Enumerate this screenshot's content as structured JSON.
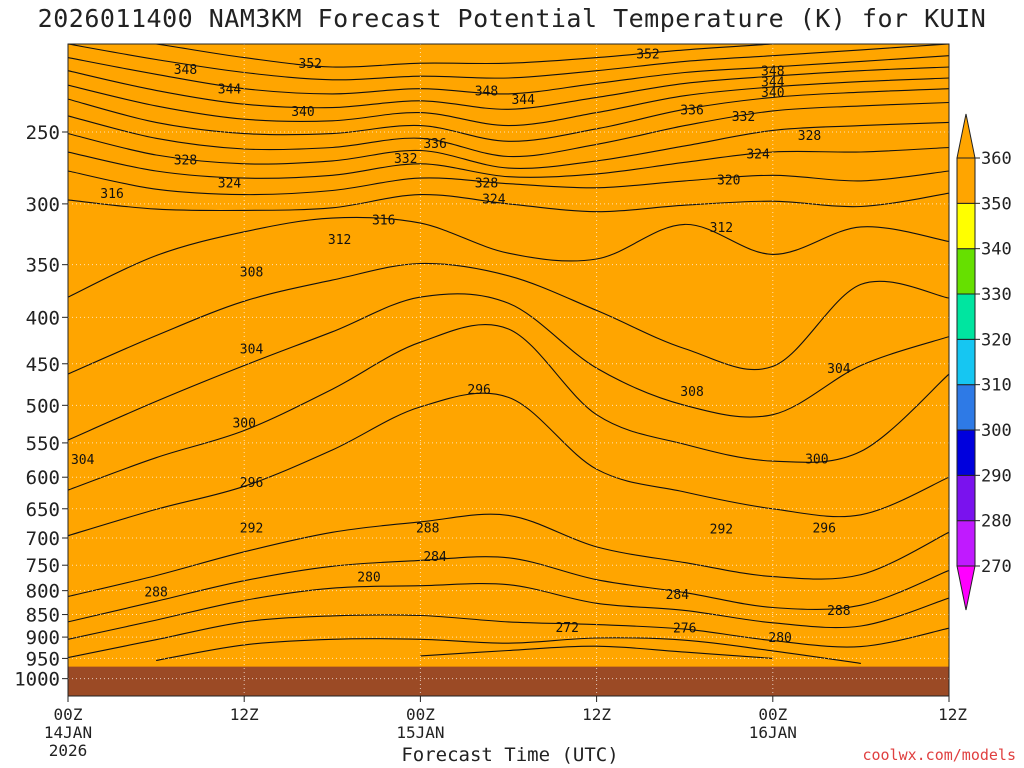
{
  "header": {
    "title": "2026011400 NAM3KM Forecast Potential Temperature (K) for KUIN"
  },
  "footer": {
    "xlabel": "Forecast Time (UTC)",
    "credit": "coolwx.com/models"
  },
  "chart_data": {
    "type": "heatmap",
    "title": "2026011400 NAM3KM Forecast Potential Temperature (K) for KUIN",
    "xlabel": "Forecast Time (UTC)",
    "ylabel": "",
    "x_range_hours": [
      0,
      60
    ],
    "y_log_pressure": true,
    "ylim": [
      1000,
      200
    ],
    "x_ticks": [
      {
        "hour": 0,
        "lines": [
          "00Z",
          "14JAN",
          "2026"
        ]
      },
      {
        "hour": 12,
        "lines": [
          "12Z"
        ]
      },
      {
        "hour": 24,
        "lines": [
          "00Z",
          "15JAN"
        ]
      },
      {
        "hour": 36,
        "lines": [
          "12Z"
        ]
      },
      {
        "hour": 48,
        "lines": [
          "00Z",
          "16JAN"
        ]
      },
      {
        "hour": 60,
        "lines": [
          "12Z"
        ]
      }
    ],
    "y_ticks": [
      250,
      300,
      350,
      400,
      450,
      500,
      550,
      600,
      650,
      700,
      750,
      800,
      850,
      900,
      950,
      1000
    ],
    "color_scale": [
      {
        "value": 270,
        "color": "#ff00ff"
      },
      {
        "value": 280,
        "color": "#c01aff"
      },
      {
        "value": 290,
        "color": "#7a12ee"
      },
      {
        "value": 300,
        "color": "#0000dd"
      },
      {
        "value": 310,
        "color": "#2e7ae6"
      },
      {
        "value": 320,
        "color": "#16c6f2"
      },
      {
        "value": 330,
        "color": "#00e5a0"
      },
      {
        "value": 340,
        "color": "#66e000"
      },
      {
        "value": 350,
        "color": "#ffff00"
      },
      {
        "value": 360,
        "color": "#ffa500"
      }
    ],
    "colorbar_labels": [
      270,
      280,
      290,
      300,
      310,
      320,
      330,
      340,
      350,
      360
    ],
    "ground_color": "#9b4a25",
    "surface_pressure": 970,
    "grid": "dotted",
    "contour_interval": 4,
    "x_hours": [
      0,
      6,
      12,
      18,
      24,
      30,
      36,
      42,
      48,
      54,
      60
    ],
    "isentropes": [
      {
        "theta": 272,
        "pressure": [
          null,
          null,
          null,
          null,
          944,
          931,
          921,
          935,
          950,
          null,
          null
        ]
      },
      {
        "theta": 276,
        "pressure": [
          null,
          955,
          918,
          905,
          905,
          914,
          902,
          907,
          932,
          962,
          null
        ]
      },
      {
        "theta": 280,
        "pressure": [
          948,
          906,
          866,
          853,
          852,
          866,
          872,
          882,
          908,
          922,
          880
        ]
      },
      {
        "theta": 284,
        "pressure": [
          905,
          862,
          820,
          795,
          790,
          788,
          826,
          841,
          868,
          875,
          815
        ]
      },
      {
        "theta": 288,
        "pressure": [
          866,
          822,
          780,
          752,
          741,
          736,
          778,
          804,
          835,
          830,
          760
        ]
      },
      {
        "theta": 292,
        "pressure": [
          812,
          770,
          725,
          690,
          672,
          661,
          716,
          745,
          772,
          768,
          690
        ]
      },
      {
        "theta": 296,
        "pressure": [
          696,
          651,
          614,
          560,
          502,
          490,
          588,
          623,
          650,
          660,
          600
        ]
      },
      {
        "theta": 300,
        "pressure": [
          620,
          571,
          533,
          480,
          426,
          412,
          512,
          552,
          576,
          562,
          462
        ]
      },
      {
        "theta": 304,
        "pressure": [
          546,
          495,
          452,
          415,
          380,
          386,
          455,
          500,
          512,
          452,
          420
        ]
      },
      {
        "theta": 308,
        "pressure": [
          462,
          419,
          384,
          364,
          349,
          360,
          393,
          433,
          453,
          368,
          381
        ]
      },
      {
        "theta": 312,
        "pressure": [
          380,
          342,
          322,
          311,
          315,
          340,
          345,
          316,
          341,
          318,
          330
        ]
      },
      {
        "theta": 316,
        "pressure": [
          297,
          304,
          305,
          303,
          293,
          300,
          306,
          301,
          298,
          302,
          292
        ]
      },
      {
        "theta": 320,
        "pressure": [
          276,
          289,
          293,
          290,
          281,
          285,
          288,
          283,
          279,
          283,
          276
        ]
      },
      {
        "theta": 324,
        "pressure": [
          263,
          276,
          281,
          279,
          271,
          280,
          278,
          270,
          263,
          263,
          260
        ]
      },
      {
        "theta": 328,
        "pressure": [
          251,
          265,
          271,
          269,
          262,
          274,
          269,
          259,
          249,
          246,
          244
        ]
      },
      {
        "theta": 332,
        "pressure": [
          240,
          254,
          261,
          260,
          254,
          266,
          258,
          246,
          237,
          234,
          232
        ]
      },
      {
        "theta": 336,
        "pressure": [
          230,
          244,
          251,
          251,
          246,
          256,
          248,
          236,
          229,
          226,
          224
        ]
      },
      {
        "theta": 340,
        "pressure": [
          222,
          234,
          242,
          243,
          238,
          246,
          238,
          228,
          223,
          220,
          218
        ]
      },
      {
        "theta": 344,
        "pressure": [
          214,
          225,
          233,
          235,
          231,
          236,
          229,
          221,
          217,
          214,
          212
        ]
      },
      {
        "theta": 348,
        "pressure": [
          207,
          216,
          224,
          227,
          224,
          227,
          221,
          215,
          212,
          209,
          206
        ]
      },
      {
        "theta": 352,
        "pressure": [
          200,
          208,
          215,
          219,
          217,
          218,
          214,
          209,
          206,
          203,
          200
        ]
      },
      {
        "theta": 356,
        "pressure": [
          194,
          200,
          207,
          212,
          210,
          210,
          207,
          203,
          200,
          197,
          195
        ]
      }
    ],
    "contour_labels": [
      {
        "text": "352",
        "hour": 16.5,
        "p": 210
      },
      {
        "text": "352",
        "hour": 39.5,
        "p": 205
      },
      {
        "text": "348",
        "hour": 8,
        "p": 213
      },
      {
        "text": "348",
        "hour": 28.5,
        "p": 225
      },
      {
        "text": "348",
        "hour": 48,
        "p": 214
      },
      {
        "text": "344",
        "hour": 11,
        "p": 224
      },
      {
        "text": "344",
        "hour": 31,
        "p": 230
      },
      {
        "text": "344",
        "hour": 48,
        "p": 220
      },
      {
        "text": "340",
        "hour": 16,
        "p": 237
      },
      {
        "text": "340",
        "hour": 48,
        "p": 226
      },
      {
        "text": "336",
        "hour": 25,
        "p": 257
      },
      {
        "text": "336",
        "hour": 42.5,
        "p": 236
      },
      {
        "text": "332",
        "hour": 23,
        "p": 267
      },
      {
        "text": "332",
        "hour": 46,
        "p": 240
      },
      {
        "text": "328",
        "hour": 8,
        "p": 268
      },
      {
        "text": "328",
        "hour": 28.5,
        "p": 284
      },
      {
        "text": "328",
        "hour": 50.5,
        "p": 252
      },
      {
        "text": "324",
        "hour": 11,
        "p": 284
      },
      {
        "text": "324",
        "hour": 29,
        "p": 296
      },
      {
        "text": "324",
        "hour": 47,
        "p": 264
      },
      {
        "text": "320",
        "hour": 45,
        "p": 282
      },
      {
        "text": "316",
        "hour": 3,
        "p": 292
      },
      {
        "text": "316",
        "hour": 21.5,
        "p": 312
      },
      {
        "text": "312",
        "hour": 18.5,
        "p": 328
      },
      {
        "text": "312",
        "hour": 44.5,
        "p": 318
      },
      {
        "text": "308",
        "hour": 12.5,
        "p": 356
      },
      {
        "text": "308",
        "hour": 42.5,
        "p": 482
      },
      {
        "text": "304",
        "hour": 12.5,
        "p": 433
      },
      {
        "text": "304",
        "hour": 1,
        "p": 573
      },
      {
        "text": "304",
        "hour": 52.5,
        "p": 455
      },
      {
        "text": "300",
        "hour": 12,
        "p": 522
      },
      {
        "text": "300",
        "hour": 51,
        "p": 572
      },
      {
        "text": "296",
        "hour": 12.5,
        "p": 607
      },
      {
        "text": "296",
        "hour": 28,
        "p": 480
      },
      {
        "text": "296",
        "hour": 51.5,
        "p": 682
      },
      {
        "text": "292",
        "hour": 12.5,
        "p": 682
      },
      {
        "text": "292",
        "hour": 44.5,
        "p": 683
      },
      {
        "text": "288",
        "hour": 6,
        "p": 802
      },
      {
        "text": "288",
        "hour": 24.5,
        "p": 682
      },
      {
        "text": "288",
        "hour": 52.5,
        "p": 840
      },
      {
        "text": "284",
        "hour": 25,
        "p": 733
      },
      {
        "text": "284",
        "hour": 41.5,
        "p": 807
      },
      {
        "text": "280",
        "hour": 20.5,
        "p": 772
      },
      {
        "text": "280",
        "hour": 48.5,
        "p": 900
      },
      {
        "text": "276",
        "hour": 42,
        "p": 878
      },
      {
        "text": "272",
        "hour": 34,
        "p": 877
      }
    ]
  }
}
